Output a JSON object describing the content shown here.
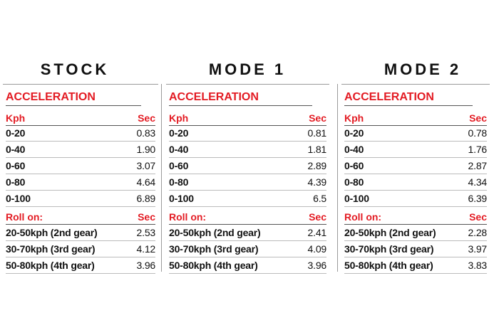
{
  "panels": [
    {
      "title": "STOCK",
      "section": "ACCELERATION",
      "head": [
        "Kph",
        "Sec"
      ],
      "rows": [
        [
          "0-20",
          "0.83"
        ],
        [
          "0-40",
          "1.90"
        ],
        [
          "0-60",
          "3.07"
        ],
        [
          "0-80",
          "4.64"
        ],
        [
          "0-100",
          "6.89"
        ]
      ],
      "roll_head": [
        "Roll on:",
        "Sec"
      ],
      "roll_rows": [
        [
          "20-50kph (2nd gear)",
          "2.53"
        ],
        [
          "30-70kph (3rd gear)",
          "4.12"
        ],
        [
          "50-80kph (4th gear)",
          "3.96"
        ]
      ]
    },
    {
      "title": "MODE 1",
      "section": "ACCELERATION",
      "head": [
        "Kph",
        "Sec"
      ],
      "rows": [
        [
          "0-20",
          "0.81"
        ],
        [
          "0-40",
          "1.81"
        ],
        [
          "0-60",
          "2.89"
        ],
        [
          "0-80",
          "4.39"
        ],
        [
          "0-100",
          "6.5"
        ]
      ],
      "roll_head": [
        "Roll on:",
        "Sec"
      ],
      "roll_rows": [
        [
          "20-50kph (2nd gear)",
          "2.41"
        ],
        [
          "30-70kph (3rd gear)",
          "4.09"
        ],
        [
          "50-80kph (4th gear)",
          "3.96"
        ]
      ]
    },
    {
      "title": "MODE 2",
      "section": "ACCELERATION",
      "head": [
        "Kph",
        "Sec"
      ],
      "rows": [
        [
          "0-20",
          "0.78"
        ],
        [
          "0-40",
          "1.76"
        ],
        [
          "0-60",
          "2.87"
        ],
        [
          "0-80",
          "4.34"
        ],
        [
          "0-100",
          "6.39"
        ]
      ],
      "roll_head": [
        "Roll on:",
        "Sec"
      ],
      "roll_rows": [
        [
          "20-50kph (2nd gear)",
          "2.28"
        ],
        [
          "30-70kph (3rd gear)",
          "3.97"
        ],
        [
          "50-80kph (4th gear)",
          "3.83"
        ]
      ]
    }
  ]
}
